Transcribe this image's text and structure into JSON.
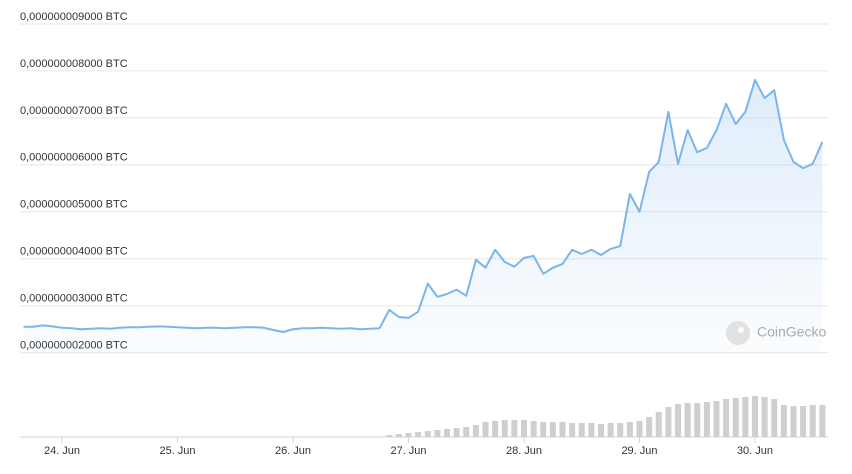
{
  "chart_data": {
    "type": "line",
    "watermark": "CoinGecko",
    "x": [
      -8,
      -6,
      -4,
      -2,
      0,
      2,
      4,
      6,
      8,
      10,
      12,
      14,
      16,
      18,
      20,
      22,
      24,
      26,
      28,
      30,
      32,
      34,
      36,
      38,
      40,
      42,
      44,
      46,
      48,
      50,
      52,
      54,
      56,
      58,
      60,
      62,
      64,
      66,
      68,
      70,
      72,
      74,
      76,
      78,
      80,
      82,
      84,
      86,
      88,
      90,
      92,
      94,
      96,
      98,
      100,
      102,
      104,
      106,
      108,
      110,
      112,
      114,
      116,
      118,
      120,
      122,
      124,
      126,
      128,
      130,
      132,
      134,
      136,
      138,
      140,
      142,
      144,
      146,
      148,
      150,
      152,
      154,
      156,
      158
    ],
    "values": [
      2.55e-09,
      2.55e-09,
      2.58e-09,
      2.56e-09,
      2.53e-09,
      2.52e-09,
      2.5e-09,
      2.51e-09,
      2.52e-09,
      2.51e-09,
      2.53e-09,
      2.54e-09,
      2.54e-09,
      2.55e-09,
      2.56e-09,
      2.55e-09,
      2.54e-09,
      2.53e-09,
      2.52e-09,
      2.53e-09,
      2.53e-09,
      2.52e-09,
      2.53e-09,
      2.54e-09,
      2.54e-09,
      2.53e-09,
      2.48e-09,
      2.44e-09,
      2.5e-09,
      2.52e-09,
      2.52e-09,
      2.53e-09,
      2.52e-09,
      2.51e-09,
      2.52e-09,
      2.5e-09,
      2.51e-09,
      2.52e-09,
      2.91e-09,
      2.76e-09,
      2.74e-09,
      2.87e-09,
      3.47e-09,
      3.19e-09,
      3.25e-09,
      3.34e-09,
      3.21e-09,
      3.98e-09,
      3.81e-09,
      4.19e-09,
      3.93e-09,
      3.83e-09,
      4.02e-09,
      4.06e-09,
      3.68e-09,
      3.81e-09,
      3.89e-09,
      4.19e-09,
      4.1e-09,
      4.19e-09,
      4.08e-09,
      4.21e-09,
      4.27e-09,
      5.38e-09,
      5e-09,
      5.85e-09,
      6.06e-09,
      7.13e-09,
      6.02e-09,
      6.74e-09,
      6.27e-09,
      6.36e-09,
      6.74e-09,
      7.3e-09,
      6.87e-09,
      7.13e-09,
      7.81e-09,
      7.42e-09,
      7.59e-09,
      6.53e-09,
      6.06e-09,
      5.93e-09,
      6.02e-09,
      6.49e-09
    ],
    "volumes": [
      0.5,
      0.5,
      0.5,
      0.5,
      0.5,
      0.5,
      0.5,
      0.5,
      0.5,
      0.5,
      0.5,
      0.5,
      0.5,
      0.5,
      0.5,
      0.5,
      0.5,
      0.5,
      0.5,
      0.5,
      0.5,
      0.5,
      0.5,
      0.5,
      0.5,
      0.5,
      0.5,
      0.5,
      0.5,
      0.5,
      0.5,
      0.5,
      0.5,
      0.5,
      0.5,
      0.5,
      0.5,
      0.5,
      2,
      3,
      4,
      5,
      6,
      7,
      8,
      9,
      10,
      12,
      15,
      16,
      17,
      17,
      17,
      16,
      15,
      15,
      15,
      14,
      14,
      14,
      13,
      14,
      14,
      15,
      16,
      20,
      25,
      30,
      33,
      34,
      34,
      35,
      36,
      38,
      39,
      40,
      41,
      40,
      38,
      32,
      31,
      31,
      32,
      32
    ],
    "color": "#7cb5ec",
    "volume_color": "#cfcfcf",
    "xlim": [
      -8.73,
      159.17
    ],
    "xticks": [
      {
        "value": 0,
        "label": "24. Jun"
      },
      {
        "value": 24,
        "label": "25. Jun"
      },
      {
        "value": 48,
        "label": "26. Jun"
      },
      {
        "value": 72,
        "label": "27. Jun"
      },
      {
        "value": 96,
        "label": "28. Jun"
      },
      {
        "value": 120,
        "label": "29. Jun"
      },
      {
        "value": 144,
        "label": "30. Jun"
      }
    ],
    "ylim": [
      1.95e-09,
      9.5e-09
    ],
    "yticks": [
      {
        "value": 2e-09,
        "label": "0,000000002000 BTC"
      },
      {
        "value": 3e-09,
        "label": "0,000000003000 BTC"
      },
      {
        "value": 4e-09,
        "label": "0,000000004000 BTC"
      },
      {
        "value": 5e-09,
        "label": "0,000000005000 BTC"
      },
      {
        "value": 6e-09,
        "label": "0,000000006000 BTC"
      },
      {
        "value": 7e-09,
        "label": "0,000000007000 BTC"
      },
      {
        "value": 8e-09,
        "label": "0,000000008000 BTC"
      },
      {
        "value": 9e-09,
        "label": "0,000000009000 BTC"
      }
    ],
    "y2lim": [
      0,
      45
    ],
    "grid": true
  }
}
